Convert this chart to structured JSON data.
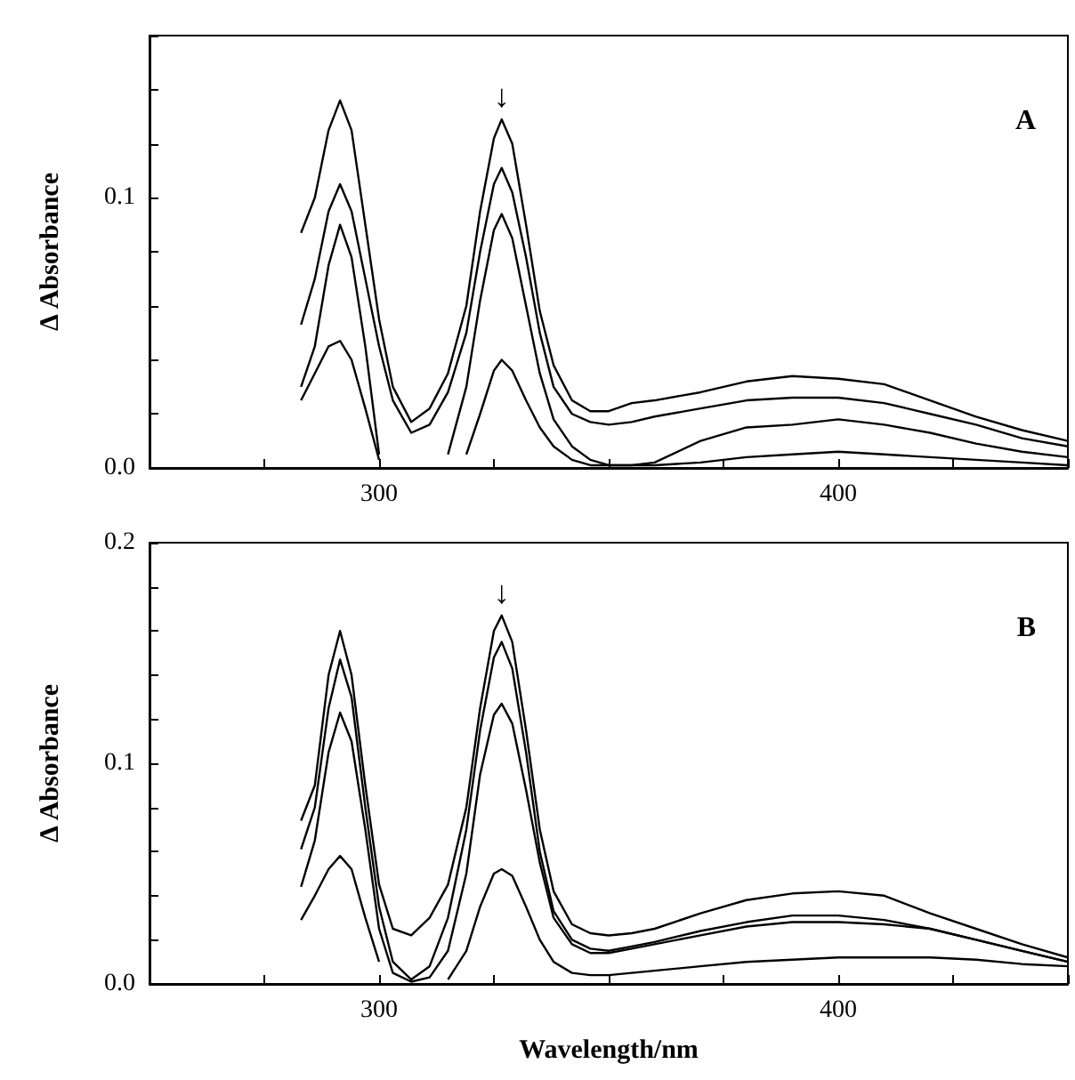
{
  "chart_data": [
    {
      "type": "line",
      "ylabel": "Δ Absorbance",
      "annotations": [
        "A",
        {
          "text": "↓",
          "x": 326.7,
          "y": 0.129
        }
      ],
      "marker": "none",
      "xlim": [
        250,
        450
      ],
      "xticks": [
        {
          "value": 250,
          "label": null
        },
        {
          "value": 275,
          "label": null
        },
        {
          "value": 300,
          "label": "300"
        },
        {
          "value": 325,
          "label": null
        },
        {
          "value": 350,
          "label": null
        },
        {
          "value": 375,
          "label": null
        },
        {
          "value": 400,
          "label": "400"
        },
        {
          "value": 425,
          "label": null
        },
        {
          "value": 450,
          "label": null
        }
      ],
      "ylim": [
        0,
        0.16
      ],
      "yticks": [
        {
          "value": 0,
          "label": "0.0"
        },
        {
          "value": 0.02,
          "label": null
        },
        {
          "value": 0.04,
          "label": null
        },
        {
          "value": 0.06,
          "label": null
        },
        {
          "value": 0.08,
          "label": null
        },
        {
          "value": 0.1,
          "label": "0.1"
        },
        {
          "value": 0.12,
          "label": null
        },
        {
          "value": 0.14,
          "label": null
        },
        {
          "value": 0.16,
          "label": null
        }
      ],
      "x": [
        283,
        286,
        289,
        291.5,
        294,
        297,
        300,
        303,
        307,
        311,
        315,
        319,
        322,
        325,
        326.7,
        329,
        332,
        335,
        338,
        342,
        346,
        350,
        355,
        360,
        370,
        380,
        390,
        400,
        410,
        420,
        430,
        440,
        450
      ],
      "series": [
        {
          "color": "#000000",
          "values": [
            0.087,
            0.1,
            0.125,
            0.136,
            0.125,
            0.09,
            0.055,
            0.03,
            0.017,
            0.022,
            0.035,
            0.06,
            0.095,
            0.122,
            0.129,
            0.12,
            0.09,
            0.058,
            0.038,
            0.025,
            0.021,
            0.021,
            0.024,
            0.025,
            0.028,
            0.032,
            0.034,
            0.033,
            0.031,
            0.025,
            0.019,
            0.014,
            0.01
          ]
        },
        {
          "color": "#000000",
          "values": [
            0.053,
            0.07,
            0.095,
            0.105,
            0.095,
            0.07,
            0.045,
            0.025,
            0.013,
            0.016,
            0.028,
            0.05,
            0.08,
            0.105,
            0.111,
            0.102,
            0.078,
            0.05,
            0.03,
            0.02,
            0.017,
            0.016,
            0.017,
            0.019,
            0.022,
            0.025,
            0.026,
            0.026,
            0.024,
            0.02,
            0.016,
            0.011,
            0.008
          ]
        },
        {
          "color": "#000000",
          "values": [
            0.03,
            0.045,
            0.075,
            0.09,
            0.078,
            0.045,
            0.005,
            null,
            null,
            null,
            0.005,
            0.03,
            0.062,
            0.088,
            0.094,
            0.085,
            0.06,
            0.035,
            0.018,
            0.008,
            0.003,
            0.001,
            0.001,
            0.002,
            0.01,
            0.015,
            0.016,
            0.018,
            0.016,
            0.013,
            0.009,
            0.006,
            0.004
          ]
        },
        {
          "color": "#000000",
          "values": [
            0.025,
            0.035,
            0.045,
            0.047,
            0.04,
            0.022,
            0.003,
            null,
            null,
            null,
            null,
            0.005,
            0.02,
            0.036,
            0.04,
            0.036,
            0.025,
            0.015,
            0.008,
            0.003,
            0.001,
            0.001,
            0.001,
            0.001,
            0.002,
            0.004,
            0.005,
            0.006,
            0.005,
            0.004,
            0.003,
            0.002,
            0.001
          ]
        }
      ]
    },
    {
      "type": "line",
      "xlabel": "Wavelength/nm",
      "ylabel": "Δ Absorbance",
      "annotations": [
        "B",
        {
          "text": "↓",
          "x": 326.7,
          "y": 0.167
        }
      ],
      "marker": "none",
      "xlim": [
        250,
        450
      ],
      "xticks": [
        {
          "value": 250,
          "label": null
        },
        {
          "value": 275,
          "label": null
        },
        {
          "value": 300,
          "label": "300"
        },
        {
          "value": 325,
          "label": null
        },
        {
          "value": 350,
          "label": null
        },
        {
          "value": 375,
          "label": null
        },
        {
          "value": 400,
          "label": "400"
        },
        {
          "value": 425,
          "label": null
        },
        {
          "value": 450,
          "label": null
        }
      ],
      "ylim": [
        0,
        0.2
      ],
      "yticks": [
        {
          "value": 0,
          "label": "0.0"
        },
        {
          "value": 0.02,
          "label": null
        },
        {
          "value": 0.04,
          "label": null
        },
        {
          "value": 0.06,
          "label": null
        },
        {
          "value": 0.08,
          "label": null
        },
        {
          "value": 0.1,
          "label": "0.1"
        },
        {
          "value": 0.12,
          "label": null
        },
        {
          "value": 0.14,
          "label": null
        },
        {
          "value": 0.16,
          "label": null
        },
        {
          "value": 0.18,
          "label": null
        },
        {
          "value": 0.2,
          "label": "0.2"
        }
      ],
      "x": [
        283,
        286,
        289,
        291.5,
        294,
        297,
        300,
        303,
        307,
        311,
        315,
        319,
        322,
        325,
        326.7,
        329,
        332,
        335,
        338,
        342,
        346,
        350,
        355,
        360,
        370,
        380,
        390,
        400,
        410,
        420,
        430,
        440,
        450
      ],
      "series": [
        {
          "color": "#000000",
          "values": [
            0.074,
            0.09,
            0.14,
            0.16,
            0.14,
            0.09,
            0.045,
            0.025,
            0.022,
            0.03,
            0.045,
            0.08,
            0.125,
            0.16,
            0.167,
            0.155,
            0.115,
            0.07,
            0.042,
            0.027,
            0.023,
            0.022,
            0.023,
            0.025,
            0.032,
            0.038,
            0.041,
            0.042,
            0.04,
            0.032,
            0.025,
            0.018,
            0.012
          ]
        },
        {
          "color": "#000000",
          "values": [
            0.061,
            0.08,
            0.125,
            0.147,
            0.13,
            0.08,
            0.035,
            0.01,
            0.002,
            0.008,
            0.03,
            0.07,
            0.115,
            0.148,
            0.155,
            0.143,
            0.105,
            0.06,
            0.033,
            0.02,
            0.016,
            0.015,
            0.017,
            0.019,
            0.024,
            0.028,
            0.031,
            0.031,
            0.029,
            0.025,
            0.02,
            0.015,
            0.01
          ]
        },
        {
          "color": "#000000",
          "values": [
            0.044,
            0.065,
            0.105,
            0.123,
            0.11,
            0.07,
            0.025,
            0.005,
            0.001,
            0.003,
            0.015,
            0.05,
            0.095,
            0.122,
            0.127,
            0.118,
            0.088,
            0.055,
            0.03,
            0.018,
            0.014,
            0.014,
            0.016,
            0.018,
            0.022,
            0.026,
            0.028,
            0.028,
            0.027,
            0.025,
            0.02,
            0.015,
            0.01
          ]
        },
        {
          "color": "#000000",
          "values": [
            0.029,
            0.04,
            0.052,
            0.058,
            0.052,
            0.03,
            0.01,
            null,
            null,
            null,
            0.002,
            0.015,
            0.035,
            0.05,
            0.052,
            0.049,
            0.035,
            0.02,
            0.01,
            0.005,
            0.004,
            0.004,
            0.005,
            0.006,
            0.008,
            0.01,
            0.011,
            0.012,
            0.012,
            0.012,
            0.011,
            0.009,
            0.008
          ]
        }
      ]
    }
  ]
}
